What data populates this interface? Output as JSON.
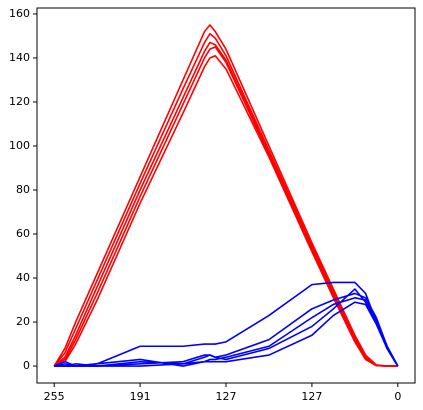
{
  "chart_data": {
    "type": "line",
    "x": [
      0,
      8,
      16,
      32,
      64,
      96,
      112,
      116,
      120,
      128,
      160,
      192,
      208,
      224,
      232,
      240,
      248,
      256
    ],
    "series": [
      {
        "color": "#ff0000",
        "values": [
          0,
          8,
          20,
          42,
          86,
          130,
          152,
          155,
          152,
          144,
          100,
          56,
          35,
          14,
          5,
          0.5,
          0,
          0
        ]
      },
      {
        "color": "#ff0000",
        "values": [
          0,
          6,
          17,
          39,
          83,
          126,
          147,
          151,
          149,
          141,
          98,
          55,
          34,
          13,
          4,
          0.3,
          0,
          0
        ]
      },
      {
        "color": "#ff0000",
        "values": [
          0,
          4,
          14,
          36,
          80,
          122,
          143,
          147,
          146,
          139,
          97,
          54,
          33,
          12,
          4,
          0.3,
          0,
          0
        ]
      },
      {
        "color": "#ff0000",
        "values": [
          0,
          3,
          12,
          33,
          77,
          119,
          140,
          144,
          145,
          138,
          96,
          53,
          32,
          12,
          3,
          0.2,
          0,
          0
        ]
      },
      {
        "color": "#ff0000",
        "values": [
          0,
          2,
          10,
          30,
          74,
          115,
          136,
          140,
          141,
          135,
          95,
          52,
          31,
          11,
          3,
          0.2,
          0,
          0
        ]
      },
      {
        "color": "#0000ff",
        "values": [
          0,
          2,
          0,
          1,
          9,
          9,
          10,
          10,
          10,
          11,
          23,
          37,
          38,
          38,
          33,
          20,
          8,
          0
        ]
      },
      {
        "color": "#0000ff",
        "values": [
          0,
          1,
          0,
          0,
          2,
          1,
          4,
          5,
          4,
          5,
          12,
          26,
          30,
          33,
          31,
          22,
          9,
          0
        ]
      },
      {
        "color": "#0000ff",
        "values": [
          0,
          0,
          0,
          1,
          3,
          0,
          2,
          3,
          3,
          4,
          9,
          22,
          28,
          31,
          30,
          21,
          9,
          0
        ]
      },
      {
        "color": "#0000ff",
        "values": [
          0,
          0,
          1,
          0,
          1,
          2,
          5,
          5,
          4,
          3,
          8,
          18,
          26,
          35,
          29,
          20,
          8,
          0
        ]
      },
      {
        "color": "#0000ff",
        "values": [
          0,
          0,
          0,
          0,
          0,
          1,
          2,
          2,
          2,
          2,
          5,
          14,
          23,
          29,
          28,
          19,
          8,
          0
        ]
      }
    ],
    "xlim": [
      -12.8,
      268.8
    ],
    "xticks": [
      {
        "value": 0,
        "label": "255"
      },
      {
        "value": 64,
        "label": "191"
      },
      {
        "value": 128,
        "label": "127"
      },
      {
        "value": 192,
        "label": "127"
      },
      {
        "value": 256,
        "label": "0"
      }
    ],
    "ylim": [
      -7.7,
      162.7
    ],
    "yticks": [
      0,
      20,
      40,
      60,
      80,
      100,
      120,
      140,
      160
    ],
    "grid": false
  }
}
